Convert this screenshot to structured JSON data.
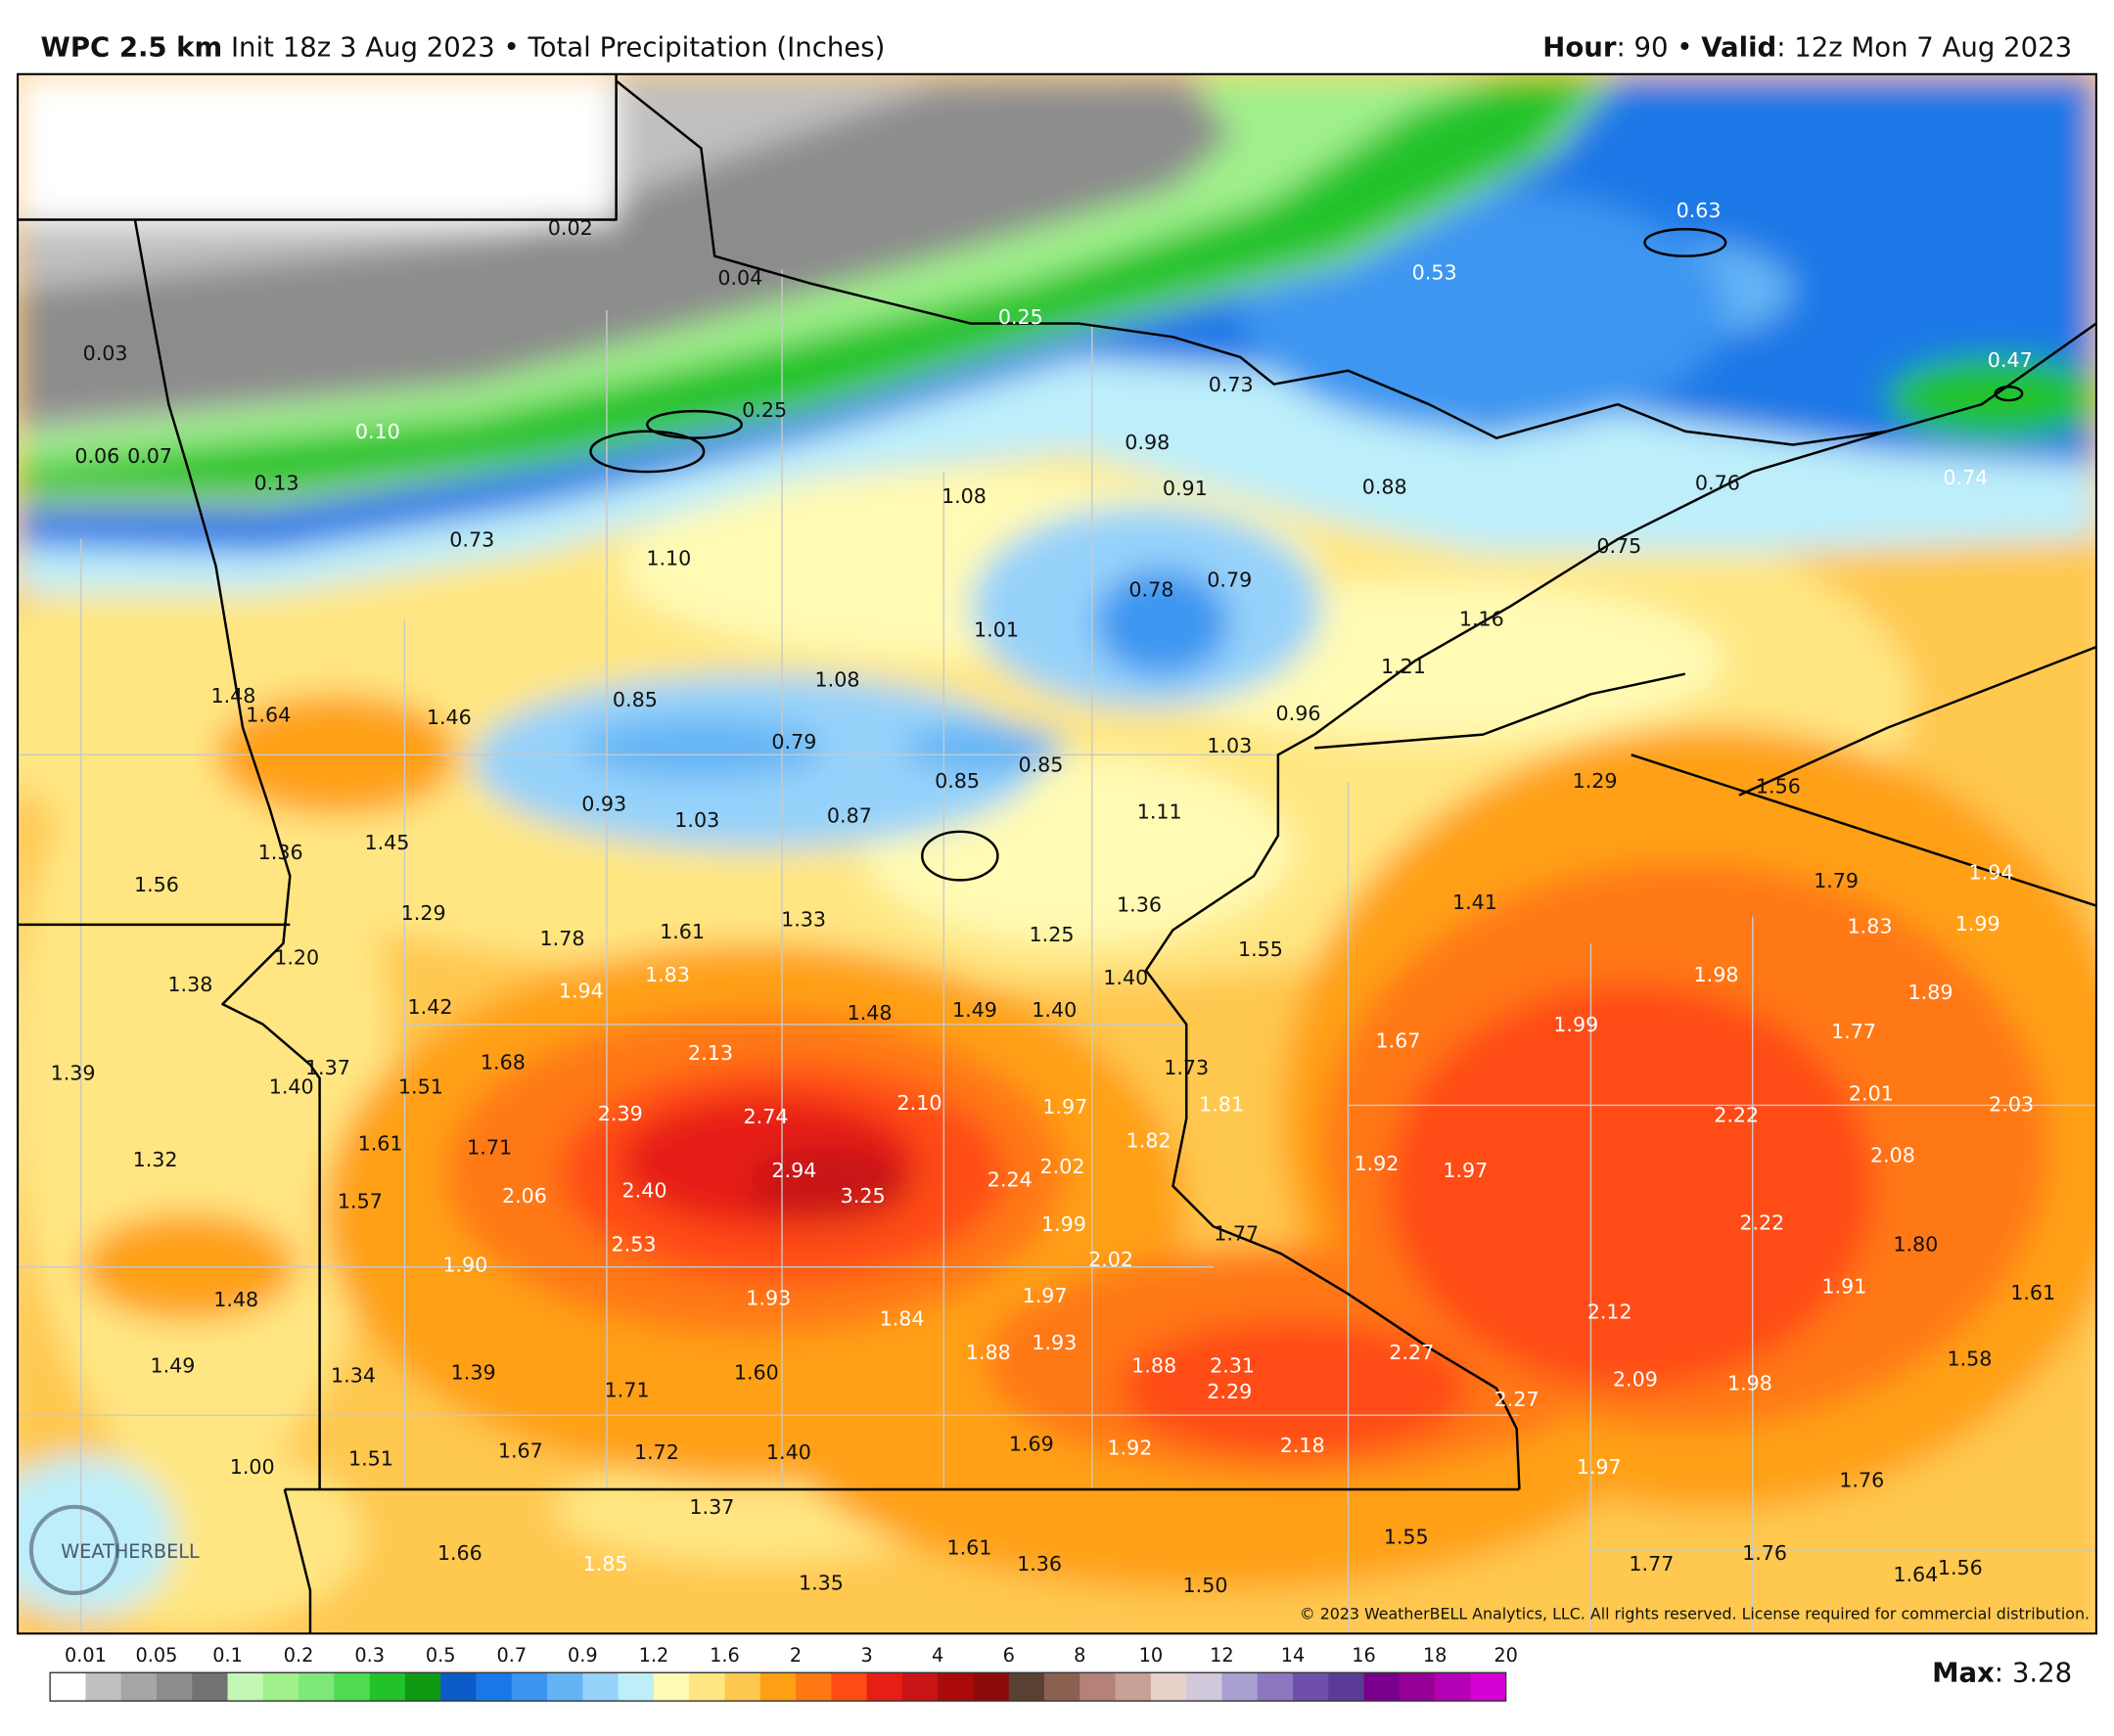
{
  "header": {
    "model": "WPC 2.5 km",
    "init": " Init 18z 3 Aug 2023 • Total Precipitation (Inches)",
    "hour_label": "Hour",
    "hour_value": ": 90 • ",
    "valid_label": "Valid",
    "valid_value": ": 12z Mon 7 Aug 2023"
  },
  "map": {
    "labels": [
      "0.02",
      "0.04",
      "0.03",
      "0.25",
      "0.25",
      "0.10",
      "0.06",
      "0.07",
      "0.13",
      "0.73",
      "0.63",
      "0.53",
      "0.47",
      "0.73",
      "0.98",
      "0.91",
      "0.88",
      "1.08",
      "0.76",
      "0.74",
      "1.10",
      "0.75",
      "0.78",
      "0.79",
      "1.01",
      "1.16",
      "1.21",
      "1.08",
      "1.48",
      "1.64",
      "1.46",
      "0.85",
      "0.96",
      "0.79",
      "1.03",
      "0.85",
      "0.85",
      "1.29",
      "1.56",
      "0.93",
      "1.03",
      "0.87",
      "1.11",
      "1.36",
      "1.45",
      "1.56",
      "1.79",
      "1.94",
      "1.36",
      "1.41",
      "1.29",
      "1.33",
      "1.78",
      "1.61",
      "1.25",
      "1.83",
      "1.99",
      "1.20",
      "1.55",
      "1.38",
      "1.94",
      "1.83",
      "1.40",
      "1.98",
      "1.89",
      "1.42",
      "1.48",
      "1.49",
      "1.40",
      "1.99",
      "1.77",
      "1.67",
      "1.37",
      "1.68",
      "2.13",
      "1.73",
      "1.39",
      "1.40",
      "1.51",
      "2.01",
      "2.03",
      "2.39",
      "2.74",
      "2.10",
      "1.97",
      "1.81",
      "2.22",
      "1.61",
      "1.71",
      "1.82",
      "1.32",
      "2.08",
      "2.94",
      "2.02",
      "1.92",
      "1.97",
      "2.24",
      "2.40",
      "3.25",
      "2.06",
      "1.57",
      "1.99",
      "2.22",
      "1.77",
      "1.80",
      "2.53",
      "2.02",
      "1.90",
      "1.91",
      "1.61",
      "1.93",
      "1.97",
      "1.48",
      "1.84",
      "2.12",
      "1.88",
      "1.93",
      "2.27",
      "1.58",
      "1.49",
      "1.34",
      "1.39",
      "1.71",
      "1.60",
      "1.88",
      "2.31",
      "2.09",
      "1.98",
      "2.29",
      "2.27",
      "1.69",
      "1.92",
      "2.18",
      "1.51",
      "1.67",
      "1.72",
      "1.40",
      "1.00",
      "1.97",
      "1.76",
      "1.37",
      "1.55",
      "1.66",
      "1.85",
      "1.61",
      "1.36",
      "1.76",
      "1.77",
      "1.64",
      "1.56",
      "1.35",
      "1.50"
    ],
    "copyright": "© 2023 WeatherBELL Analytics, LLC. All rights reserved. License required for commercial distribution.",
    "logo": "WEATHERBELL"
  },
  "legend": {
    "ticks": [
      "0.01",
      "0.05",
      "0.1",
      "0.2",
      "0.3",
      "0.5",
      "0.7",
      "0.9",
      "1.2",
      "1.6",
      "2",
      "3",
      "4",
      "6",
      "8",
      "10",
      "12",
      "14",
      "16",
      "18",
      "20"
    ],
    "max_label": "Max",
    "max_value": ": 3.28"
  }
}
